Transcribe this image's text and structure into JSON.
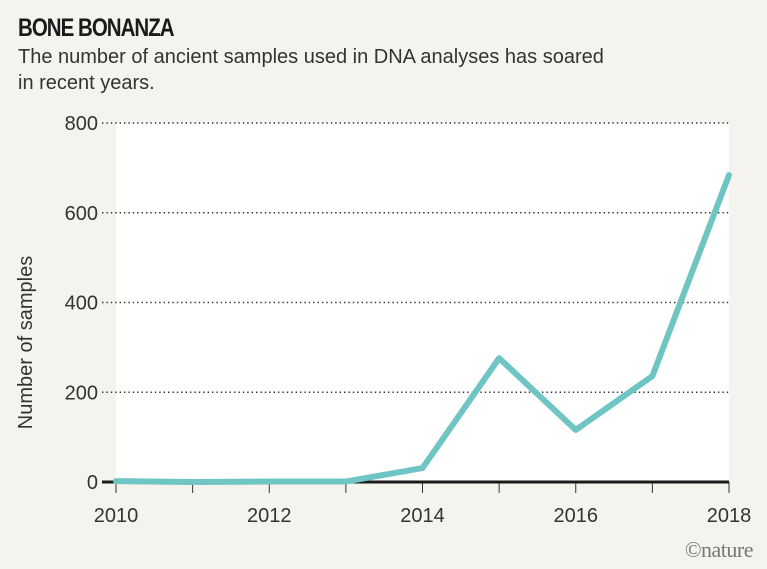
{
  "chart_data": {
    "type": "line",
    "title": "BONE BONANZA",
    "subtitle": "The number of ancient samples used in DNA analyses has soared in recent years.",
    "xlabel": "",
    "ylabel": "Number of samples",
    "x": [
      2010,
      2011,
      2012,
      2013,
      2014,
      2015,
      2016,
      2017,
      2018
    ],
    "series": [
      {
        "name": "Ancient samples",
        "values": [
          2,
          0,
          1,
          1,
          31,
          276,
          116,
          236,
          684
        ]
      }
    ],
    "xlim": [
      2010,
      2018
    ],
    "ylim": [
      0,
      800
    ],
    "xticks": [
      2010,
      2011,
      2012,
      2013,
      2014,
      2015,
      2016,
      2017,
      2018
    ],
    "xtick_labels": [
      "2010",
      "2012",
      "2014",
      "2016",
      "2018"
    ],
    "ytick_labels": [
      "0",
      "200",
      "400",
      "600",
      "800"
    ],
    "grid": "horizontal dotted",
    "line_color": "#6fc5c3"
  },
  "credit": "©nature"
}
